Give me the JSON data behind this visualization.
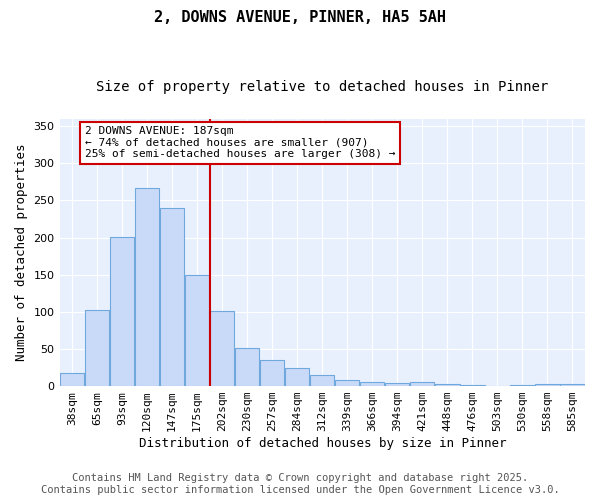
{
  "title1": "2, DOWNS AVENUE, PINNER, HA5 5AH",
  "title2": "Size of property relative to detached houses in Pinner",
  "xlabel": "Distribution of detached houses by size in Pinner",
  "ylabel": "Number of detached properties",
  "categories": [
    "38sqm",
    "65sqm",
    "93sqm",
    "120sqm",
    "147sqm",
    "175sqm",
    "202sqm",
    "230sqm",
    "257sqm",
    "284sqm",
    "312sqm",
    "339sqm",
    "366sqm",
    "394sqm",
    "421sqm",
    "448sqm",
    "476sqm",
    "503sqm",
    "530sqm",
    "558sqm",
    "585sqm"
  ],
  "values": [
    17,
    102,
    201,
    267,
    240,
    150,
    101,
    51,
    35,
    25,
    15,
    8,
    6,
    4,
    5,
    3,
    2,
    0,
    1,
    3,
    3
  ],
  "bar_color": "#c9daf8",
  "bar_edge_color": "#6fa8dc",
  "red_line_x": 6.0,
  "red_line_color": "#cc0000",
  "annotation_text": "2 DOWNS AVENUE: 187sqm\n← 74% of detached houses are smaller (907)\n25% of semi-detached houses are larger (308) →",
  "annotation_box_color": "#ffffff",
  "annotation_box_edge": "#cc0000",
  "ylim": [
    0,
    360
  ],
  "yticks": [
    0,
    50,
    100,
    150,
    200,
    250,
    300,
    350
  ],
  "bg_color": "#e8f0fe",
  "fig_bg_color": "#ffffff",
  "footer1": "Contains HM Land Registry data © Crown copyright and database right 2025.",
  "footer2": "Contains public sector information licensed under the Open Government Licence v3.0.",
  "title1_fontsize": 11,
  "title2_fontsize": 10,
  "xlabel_fontsize": 9,
  "ylabel_fontsize": 9,
  "tick_fontsize": 8,
  "annotation_fontsize": 8,
  "footer_fontsize": 7.5
}
